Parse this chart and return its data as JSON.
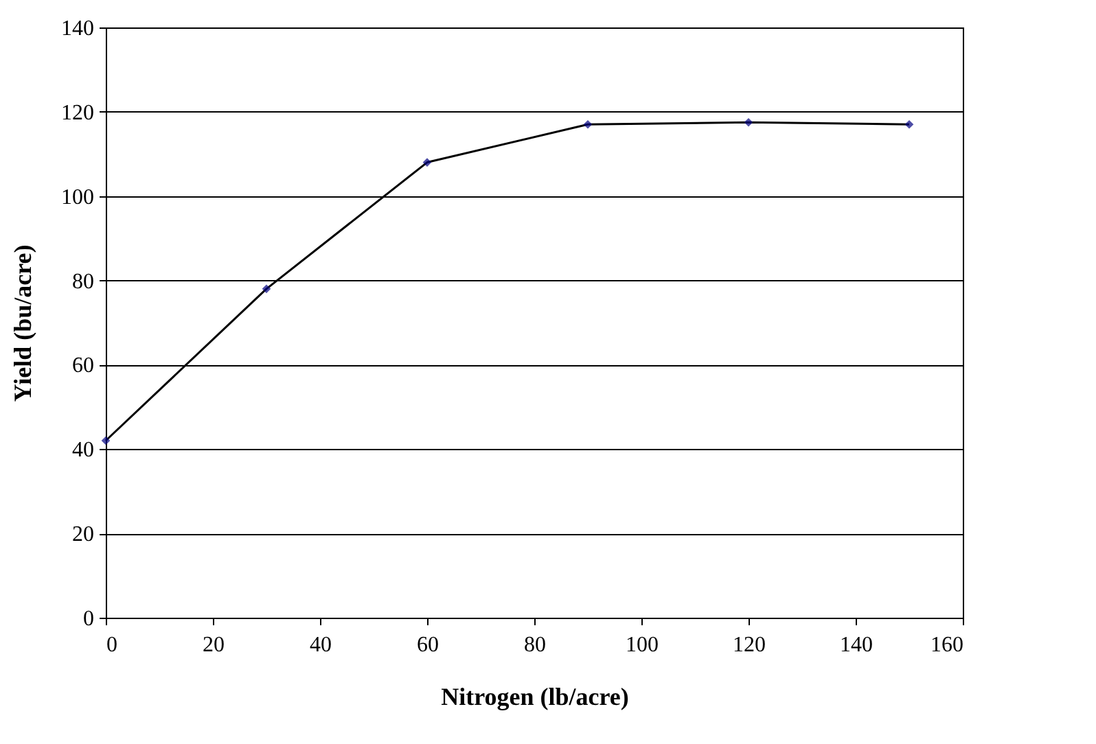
{
  "chart_data": {
    "type": "line",
    "xlabel": "Nitrogen (lb/acre)",
    "ylabel": "Yield (bu/acre)",
    "x": [
      0,
      30,
      60,
      90,
      120,
      150
    ],
    "series": [
      {
        "color": "#000000",
        "values": [
          42,
          78,
          108,
          117,
          117.5,
          117
        ]
      }
    ],
    "xlim": [
      0,
      160
    ],
    "xticks": [
      0,
      20,
      40,
      60,
      80,
      100,
      120,
      140,
      160
    ],
    "ylim": [
      0,
      140
    ],
    "yticks": [
      0,
      20,
      40,
      60,
      80,
      100,
      120,
      140
    ],
    "grid": "y",
    "marker": "diamond"
  }
}
